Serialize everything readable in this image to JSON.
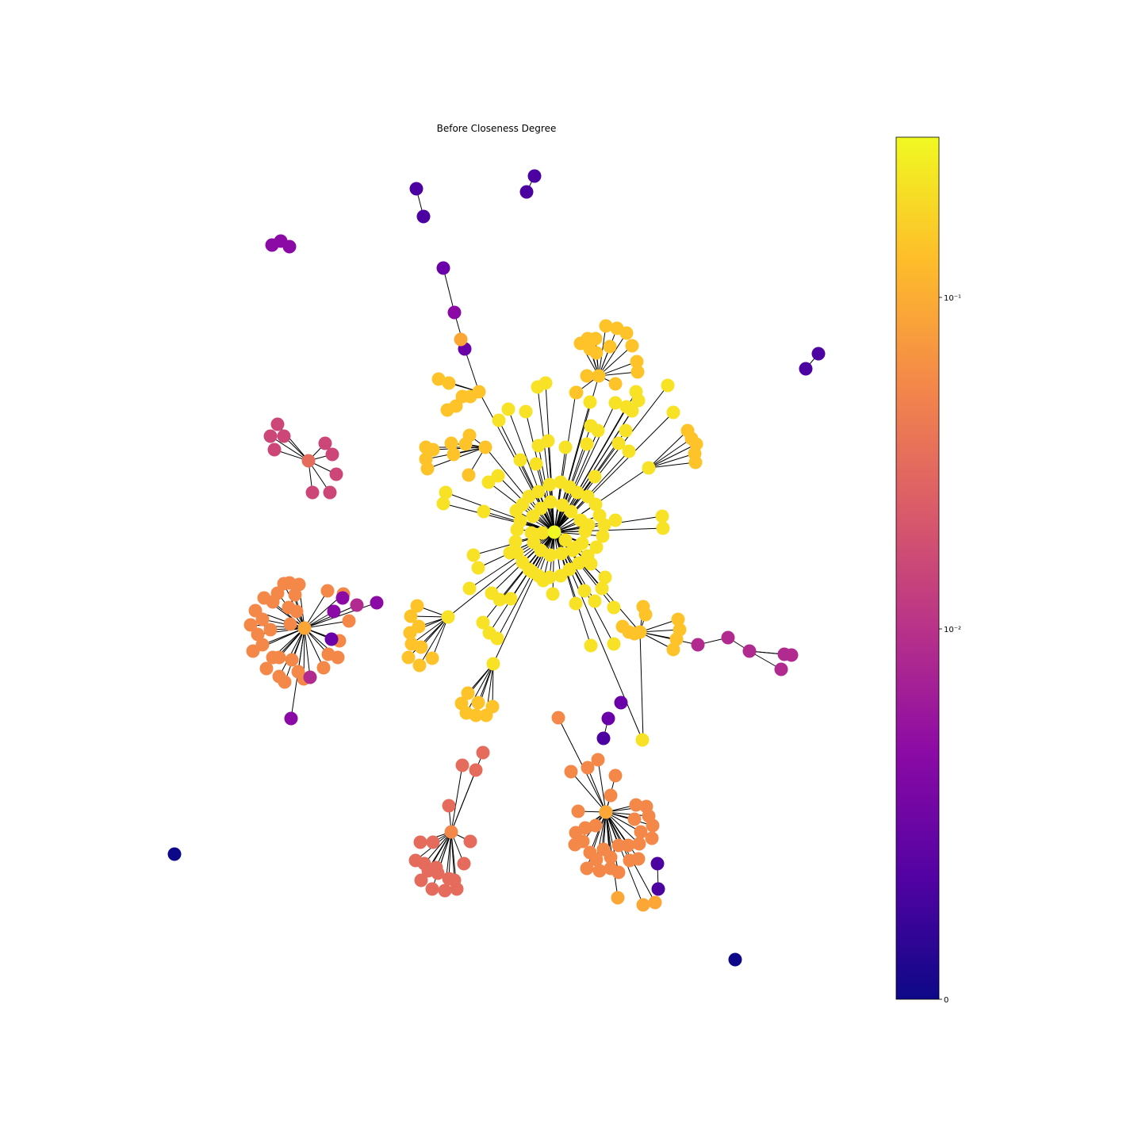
{
  "title": "Before Closeness Degree",
  "colorbar": {
    "colormap": "plasma",
    "scale": "symlog",
    "ticks": [
      {
        "label": "0",
        "value": 0
      },
      {
        "label": "10⁻²",
        "value": 0.01
      },
      {
        "label": "10⁻¹",
        "value": 0.1
      }
    ],
    "stops": [
      "#0d0887",
      "#5302a3",
      "#8b0aa5",
      "#b83289",
      "#db5c68",
      "#f48849",
      "#febd2a",
      "#f0f921"
    ]
  }
}
